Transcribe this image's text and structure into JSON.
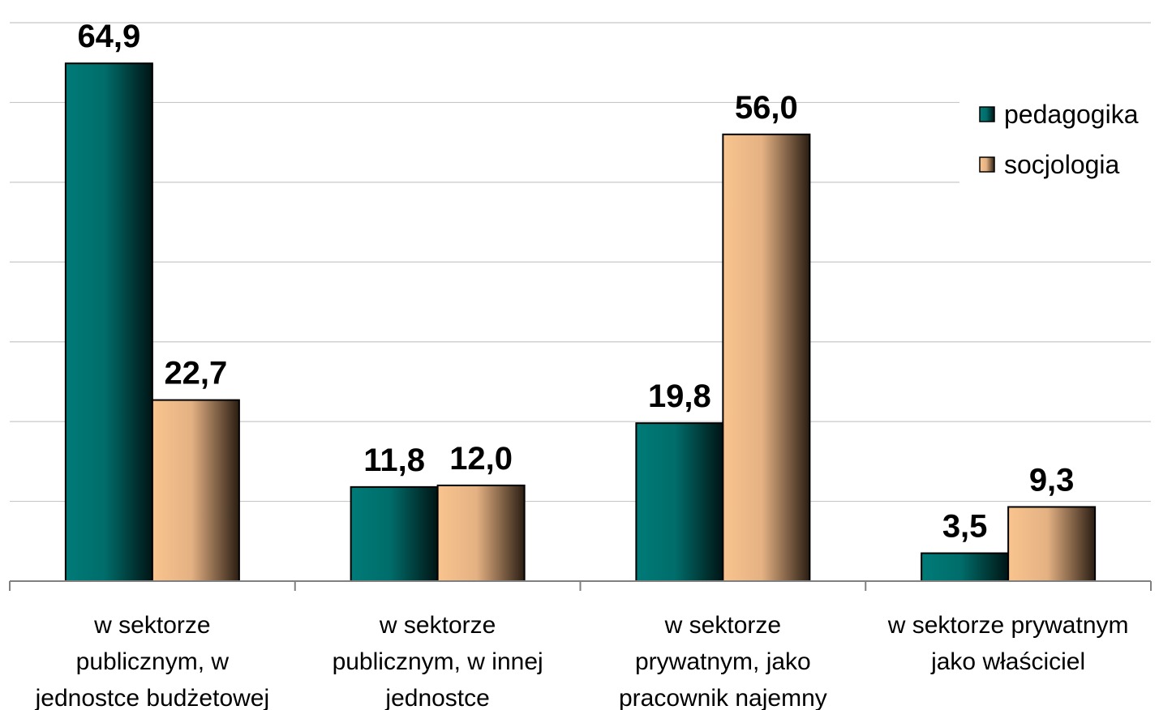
{
  "colors": {
    "pedagogika": "#007b78",
    "socjologia": "#f9c48e",
    "gridline": "#c8c8c8",
    "axis": "#808080"
  },
  "legend": {
    "items": [
      "pedagogika",
      "socjologia"
    ]
  },
  "chart_data": {
    "type": "bar",
    "categories": [
      [
        "w sektorze",
        "publicznym, w",
        "jednostce budżetowej"
      ],
      [
        "w sektorze",
        "publicznym, w innej",
        "jednostce"
      ],
      [
        "w sektorze",
        "prywatnym, jako",
        "pracownik najemny"
      ],
      [
        "w sektorze prywatnym",
        "jako właściciel"
      ]
    ],
    "series": [
      {
        "name": "pedagogika",
        "values": [
          64.9,
          11.8,
          19.8,
          3.5
        ],
        "labels": [
          "64,9",
          "11,8",
          "19,8",
          "3,5"
        ]
      },
      {
        "name": "socjologia",
        "values": [
          22.7,
          12.0,
          56.0,
          9.3
        ],
        "labels": [
          "22,7",
          "12,0",
          "56,0",
          "9,3"
        ]
      }
    ],
    "ylim": [
      0,
      70
    ],
    "grid": true,
    "legend_position": "top-right"
  }
}
